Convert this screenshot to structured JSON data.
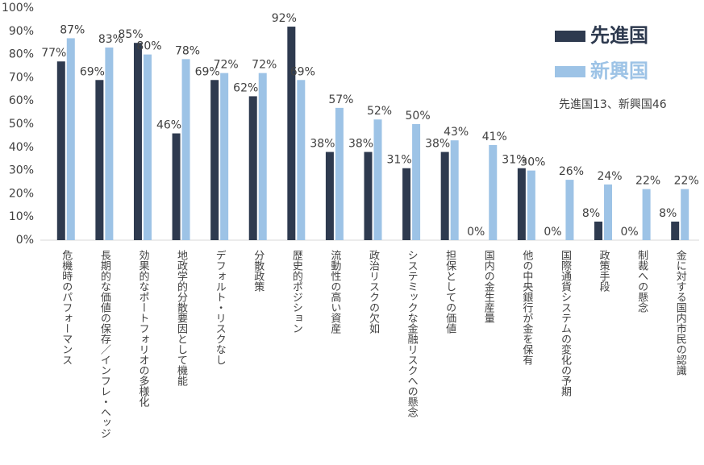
{
  "chart_data": {
    "type": "bar",
    "categories": [
      "危機時のパフォーマンス",
      "長期的な価値の保存／インフレ・ヘッジ",
      "効果的なポートフォリオの多様化",
      "地政学的分散要因として機能",
      "デフォルト・リスクなし",
      "分散政策",
      "歴史的ポジション",
      "流動性の高い資産",
      "政治リスクの欠如",
      "システミックな金融リスクへの懸念",
      "担保としての価値",
      "国内の金生産量",
      "他の中央銀行が金を保有",
      "国際通貨システムの変化の予期",
      "政策手段",
      "制裁への懸念",
      "金に対する国内市民の認識"
    ],
    "series": [
      {
        "name": "先進国",
        "color": "#2e3a4f",
        "values": [
          77,
          69,
          85,
          46,
          69,
          62,
          92,
          38,
          38,
          31,
          38,
          0,
          31,
          0,
          8,
          0,
          8
        ],
        "value_labels": [
          "77%",
          "69%",
          "85%",
          "46%",
          "69%",
          "62%",
          "92%",
          "38%",
          "38%",
          "31%",
          "38%",
          "0%",
          "31%",
          "0%",
          "8%",
          "0%",
          "8%"
        ]
      },
      {
        "name": "新興国",
        "color": "#9dc3e6",
        "values": [
          87,
          83,
          80,
          78,
          72,
          72,
          69,
          57,
          52,
          50,
          43,
          41,
          30,
          26,
          24,
          22,
          22
        ],
        "value_labels": [
          "87%",
          "83%",
          "80%",
          "78%",
          "72%",
          "72%",
          "69%",
          "57%",
          "52%",
          "50%",
          "43%",
          "41%",
          "30%",
          "26%",
          "24%",
          "22%",
          "22%"
        ]
      }
    ],
    "ylim": [
      0,
      100
    ],
    "yticks": [
      {
        "value": 0,
        "label": "0%"
      },
      {
        "value": 10,
        "label": "10%"
      },
      {
        "value": 20,
        "label": "20%"
      },
      {
        "value": 30,
        "label": "30%"
      },
      {
        "value": 40,
        "label": "40%"
      },
      {
        "value": 50,
        "label": "50%"
      },
      {
        "value": 60,
        "label": "60%"
      },
      {
        "value": 70,
        "label": "70%"
      },
      {
        "value": 80,
        "label": "80%"
      },
      {
        "value": 90,
        "label": "90%"
      },
      {
        "value": 100,
        "label": "100%"
      }
    ],
    "note": "先進国13、新興国46"
  }
}
